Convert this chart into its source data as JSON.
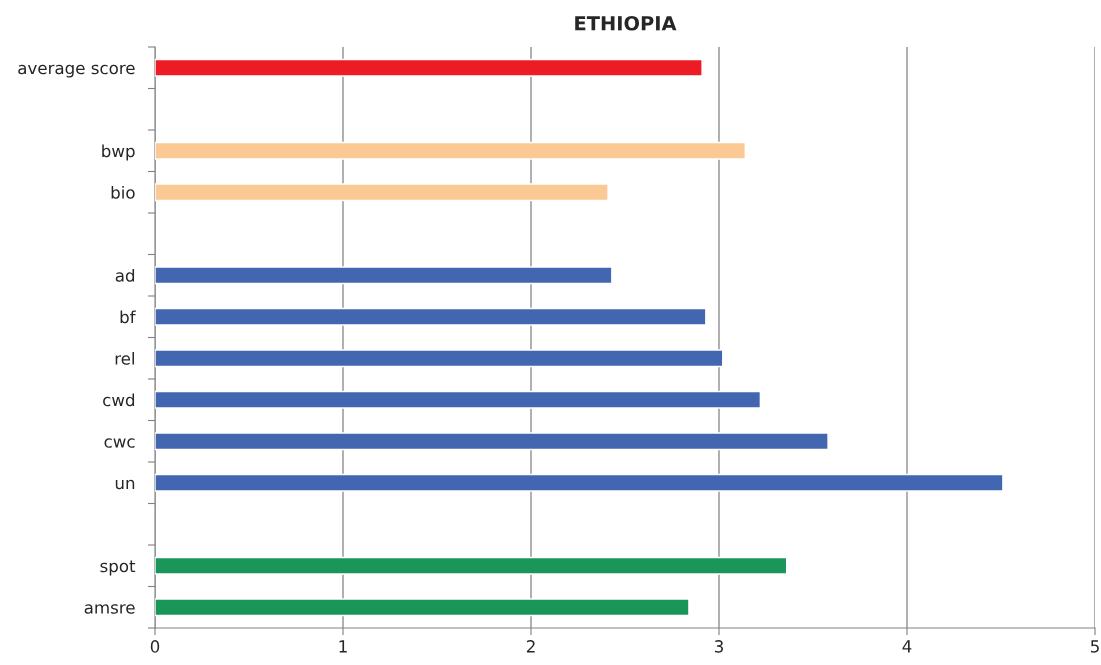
{
  "chart_data": {
    "type": "bar",
    "orientation": "horizontal",
    "title": "ETHIOPIA",
    "categories": [
      "average score",
      null,
      "bwp",
      "bio",
      null,
      "ad",
      "bf",
      "rel",
      "cwd",
      "cwc",
      "un",
      null,
      "spot",
      "amsre"
    ],
    "values": [
      2.91,
      null,
      3.14,
      2.41,
      null,
      2.43,
      2.93,
      3.02,
      3.22,
      3.58,
      4.51,
      null,
      3.36,
      2.84
    ],
    "colors": [
      "#ed1c24",
      null,
      "#fbc994",
      "#fbc994",
      null,
      "#4366b0",
      "#4366b0",
      "#4366b0",
      "#4366b0",
      "#4366b0",
      "#4366b0",
      null,
      "#1a9659",
      "#1a9659"
    ],
    "xlim": [
      0,
      5
    ],
    "xticks": [
      0,
      1,
      2,
      3,
      4,
      5
    ],
    "grid": "x"
  }
}
